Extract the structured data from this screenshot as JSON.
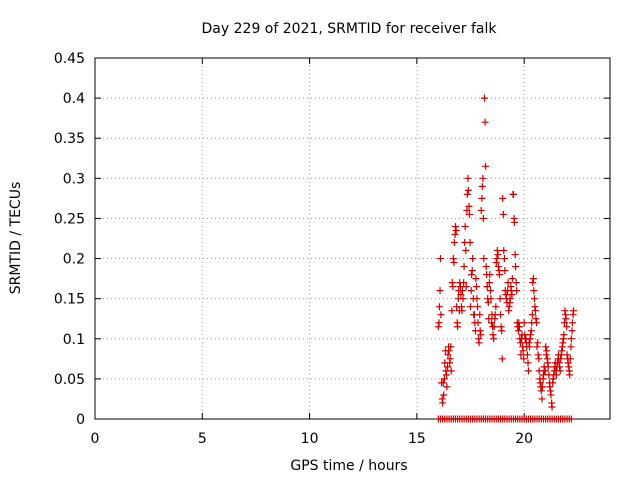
{
  "chart_data": {
    "type": "scatter",
    "title": "Day 229 of 2021, SRMTID for receiver falk",
    "xlabel": "GPS time / hours",
    "ylabel": "SRMTID / TECUs",
    "xlim": [
      0,
      24
    ],
    "ylim": [
      0,
      0.45
    ],
    "x_ticks": [
      0,
      5,
      10,
      15,
      20
    ],
    "x_tick_labels": [
      "0",
      "5",
      "10",
      "15",
      "20"
    ],
    "y_ticks": [
      0,
      0.05,
      0.1,
      0.15,
      0.2,
      0.25,
      0.3,
      0.35,
      0.4,
      0.45
    ],
    "y_tick_labels": [
      "0",
      "0.05",
      "0.1",
      "0.15",
      "0.2",
      "0.25",
      "0.3",
      "0.35",
      "0.4",
      "0.45"
    ],
    "grid": true,
    "legend": "none",
    "marker": "plus",
    "color": "#cc0000",
    "series": [
      {
        "x": [
          16.0,
          16.1,
          16.2,
          16.3,
          16.4,
          16.5,
          16.6,
          16.7,
          16.8,
          16.9,
          17.0,
          17.1,
          17.2,
          17.3,
          17.4,
          17.5,
          17.6,
          17.7,
          17.8,
          17.9,
          18.0,
          18.1,
          18.2,
          18.3,
          18.4,
          18.5,
          18.6,
          18.7,
          18.8,
          18.9,
          19.0,
          19.1,
          19.2,
          19.3,
          19.4,
          19.5,
          19.6,
          19.7,
          19.8,
          19.9,
          20.0,
          20.1,
          20.2,
          20.3,
          20.4,
          20.5,
          20.6,
          20.7,
          20.8,
          20.9,
          21.0,
          21.1,
          21.2,
          21.3,
          21.4,
          21.5,
          21.6,
          21.7,
          21.8,
          21.9,
          22.0,
          22.1,
          22.2,
          16.0,
          16.03,
          16.05,
          16.08,
          16.1,
          16.12,
          16.15,
          16.18,
          16.2,
          16.23,
          16.25,
          16.28,
          16.3,
          16.33,
          16.35,
          16.38,
          16.4,
          16.43,
          16.45,
          16.48,
          16.5,
          16.53,
          16.55,
          16.58,
          16.6,
          16.63,
          16.65,
          16.68,
          16.7,
          16.73,
          16.75,
          16.78,
          16.8,
          16.83,
          16.85,
          16.88,
          16.9,
          16.93,
          16.95,
          16.98,
          17.0,
          17.03,
          17.05,
          17.08,
          17.1,
          17.12,
          17.15,
          17.18,
          17.2,
          17.23,
          17.25,
          17.28,
          17.3,
          17.33,
          17.35,
          17.38,
          17.4,
          17.43,
          17.45,
          17.48,
          17.5,
          17.53,
          17.55,
          17.58,
          17.6,
          17.63,
          17.65,
          17.68,
          17.7,
          17.73,
          17.75,
          17.78,
          17.8,
          17.83,
          17.85,
          17.88,
          17.9,
          17.93,
          17.95,
          17.98,
          18.0,
          18.03,
          18.05,
          18.08,
          18.1,
          18.12,
          18.15,
          18.18,
          18.2,
          18.23,
          18.25,
          18.28,
          18.3,
          18.33,
          18.35,
          18.38,
          18.4,
          18.43,
          18.45,
          18.48,
          18.5,
          18.53,
          18.55,
          18.58,
          18.6,
          18.63,
          18.65,
          18.68,
          18.7,
          18.73,
          18.75,
          18.78,
          18.8,
          18.83,
          18.85,
          18.88,
          18.9,
          18.93,
          18.95,
          18.98,
          19.0,
          19.03,
          19.05,
          19.08,
          19.1,
          19.12,
          19.15,
          19.18,
          19.2,
          19.23,
          19.25,
          19.28,
          19.3,
          19.33,
          19.35,
          19.38,
          19.4,
          19.43,
          19.45,
          19.48,
          19.5,
          19.53,
          19.55,
          19.58,
          19.6,
          19.63,
          19.65,
          19.68,
          19.7,
          19.73,
          19.75,
          19.78,
          19.8,
          19.83,
          19.85,
          19.88,
          19.9,
          19.93,
          19.95,
          19.98,
          20.0,
          20.03,
          20.05,
          20.08,
          20.1,
          20.12,
          20.15,
          20.18,
          20.2,
          20.23,
          20.25,
          20.28,
          20.3,
          20.33,
          20.35,
          20.38,
          20.4,
          20.43,
          20.45,
          20.48,
          20.5,
          20.53,
          20.55,
          20.58,
          20.6,
          20.63,
          20.65,
          20.68,
          20.7,
          20.73,
          20.75,
          20.78,
          20.8,
          20.83,
          20.85,
          20.88,
          20.9,
          20.93,
          20.95,
          20.98,
          21.0,
          21.03,
          21.05,
          21.08,
          21.1,
          21.12,
          21.15,
          21.18,
          21.2,
          21.23,
          21.25,
          21.28,
          21.3,
          21.33,
          21.35,
          21.38,
          21.4,
          21.43,
          21.45,
          21.48,
          21.5,
          21.53,
          21.55,
          21.58,
          21.6,
          21.63,
          21.65,
          21.68,
          21.7,
          21.73,
          21.75,
          21.78,
          21.8,
          21.83,
          21.85,
          21.88,
          21.9,
          21.93,
          21.95,
          21.98,
          22.0,
          22.03,
          22.05,
          22.08,
          22.1,
          22.12,
          22.15,
          22.18,
          22.2,
          22.23,
          22.25,
          22.28,
          22.3
        ],
        "y": [
          0,
          0,
          0,
          0,
          0,
          0,
          0,
          0,
          0,
          0,
          0,
          0,
          0,
          0,
          0,
          0,
          0,
          0,
          0,
          0,
          0,
          0,
          0,
          0,
          0,
          0,
          0,
          0,
          0,
          0,
          0,
          0,
          0,
          0,
          0,
          0,
          0,
          0,
          0,
          0,
          0,
          0,
          0,
          0,
          0,
          0,
          0,
          0,
          0,
          0,
          0,
          0,
          0,
          0,
          0,
          0,
          0,
          0,
          0,
          0,
          0,
          0,
          0,
          0.115,
          0.12,
          0.14,
          0.16,
          0.2,
          0.13,
          0.045,
          0.025,
          0.02,
          0.045,
          0.03,
          0.05,
          0.07,
          0.085,
          0.06,
          0.055,
          0.04,
          0.065,
          0.08,
          0.09,
          0.085,
          0.07,
          0.075,
          0.09,
          0.06,
          0.135,
          0.17,
          0.165,
          0.2,
          0.195,
          0.22,
          0.23,
          0.24,
          0.235,
          0.14,
          0.12,
          0.115,
          0.15,
          0.16,
          0.135,
          0.17,
          0.165,
          0.155,
          0.14,
          0.135,
          0.16,
          0.15,
          0.17,
          0.19,
          0.22,
          0.24,
          0.21,
          0.165,
          0.26,
          0.28,
          0.3,
          0.285,
          0.265,
          0.255,
          0.22,
          0.14,
          0.16,
          0.18,
          0.185,
          0.2,
          0.15,
          0.13,
          0.13,
          0.12,
          0.11,
          0.175,
          0.165,
          0.15,
          0.14,
          0.12,
          0.1,
          0.095,
          0.13,
          0.11,
          0.105,
          0.26,
          0.275,
          0.29,
          0.3,
          0.25,
          0.2,
          0.4,
          0.37,
          0.315,
          0.19,
          0.18,
          0.165,
          0.15,
          0.145,
          0.125,
          0.17,
          0.18,
          0.16,
          0.15,
          0.12,
          0.13,
          0.115,
          0.105,
          0.1,
          0.115,
          0.125,
          0.13,
          0.14,
          0.195,
          0.2,
          0.21,
          0.205,
          0.19,
          0.185,
          0.18,
          0.15,
          0.13,
          0.115,
          0.11,
          0.075,
          0.275,
          0.255,
          0.21,
          0.2,
          0.185,
          0.16,
          0.155,
          0.15,
          0.145,
          0.16,
          0.17,
          0.135,
          0.14,
          0.145,
          0.15,
          0.165,
          0.16,
          0.155,
          0.175,
          0.28,
          0.28,
          0.25,
          0.245,
          0.205,
          0.19,
          0.17,
          0.16,
          0.12,
          0.115,
          0.11,
          0.12,
          0.115,
          0.1,
          0.095,
          0.08,
          0.1,
          0.105,
          0.09,
          0.085,
          0.075,
          0.12,
          0.105,
          0.1,
          0.1,
          0.095,
          0.09,
          0.08,
          0.07,
          0.06,
          0.095,
          0.09,
          0.1,
          0.105,
          0.11,
          0.12,
          0.13,
          0.17,
          0.175,
          0.16,
          0.15,
          0.14,
          0.135,
          0.125,
          0.12,
          0.09,
          0.095,
          0.08,
          0.075,
          0.06,
          0.05,
          0.045,
          0.04,
          0.035,
          0.025,
          0.04,
          0.05,
          0.055,
          0.065,
          0.06,
          0.06,
          0.09,
          0.08,
          0.085,
          0.075,
          0.07,
          0.065,
          0.055,
          0.045,
          0.04,
          0.035,
          0.03,
          0.02,
          0.015,
          0.045,
          0.05,
          0.055,
          0.06,
          0.065,
          0.07,
          0.06,
          0.055,
          0.065,
          0.07,
          0.075,
          0.08,
          0.07,
          0.065,
          0.06,
          0.075,
          0.08,
          0.085,
          0.09,
          0.095,
          0.1,
          0.105,
          0.12,
          0.135,
          0.13,
          0.125,
          0.115,
          0.08,
          0.075,
          0.07,
          0.065,
          0.06,
          0.055,
          0.075,
          0.09,
          0.1,
          0.11,
          0.12,
          0.13,
          0.135
        ]
      }
    ]
  }
}
